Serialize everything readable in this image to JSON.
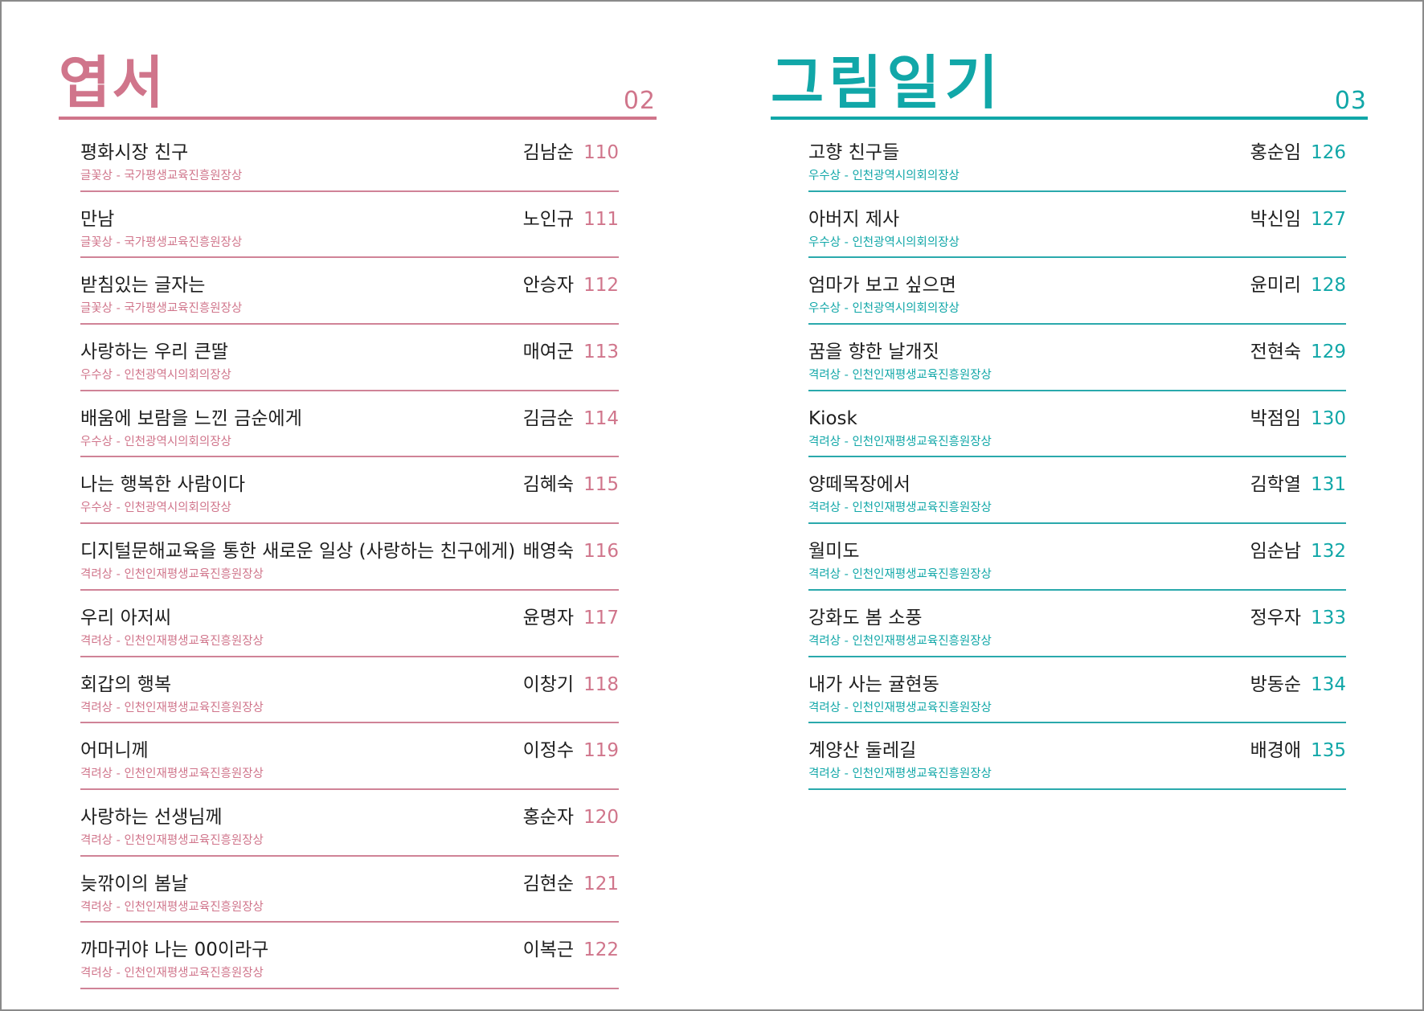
{
  "sections": [
    {
      "title": "엽서",
      "number": "02",
      "accent_color": "#D0758B",
      "items": [
        {
          "title": "평화시장 친구",
          "award": "글꽃상 - 국가평생교육진흥원장상",
          "author": "김남순",
          "page": "110"
        },
        {
          "title": "만남",
          "award": "글꽃상 - 국가평생교육진흥원장상",
          "author": "노인규",
          "page": "111"
        },
        {
          "title": "받침있는 글자는",
          "award": "글꽃상 - 국가평생교육진흥원장상",
          "author": "안승자",
          "page": "112"
        },
        {
          "title": "사랑하는 우리 큰딸",
          "award": "우수상 - 인천광역시의회의장상",
          "author": "매여군",
          "page": "113"
        },
        {
          "title": "배움에 보람을 느낀 금순에게",
          "award": "우수상 - 인천광역시의회의장상",
          "author": "김금순",
          "page": "114"
        },
        {
          "title": "나는 행복한 사람이다",
          "award": "우수상 - 인천광역시의회의장상",
          "author": "김혜숙",
          "page": "115"
        },
        {
          "title": "디지털문해교육을 통한 새로운 일상 (사랑하는 친구에게)",
          "award": "격려상 - 인천인재평생교육진흥원장상",
          "author": "배영숙",
          "page": "116"
        },
        {
          "title": "우리 아저씨",
          "award": "격려상 - 인천인재평생교육진흥원장상",
          "author": "윤명자",
          "page": "117"
        },
        {
          "title": "회갑의 행복",
          "award": "격려상 - 인천인재평생교육진흥원장상",
          "author": "이창기",
          "page": "118"
        },
        {
          "title": "어머니께",
          "award": "격려상 - 인천인재평생교육진흥원장상",
          "author": "이정수",
          "page": "119"
        },
        {
          "title": "사랑하는 선생님께",
          "award": "격려상 - 인천인재평생교육진흥원장상",
          "author": "홍순자",
          "page": "120"
        },
        {
          "title": "늦깎이의 봄날",
          "award": "격려상 - 인천인재평생교육진흥원장상",
          "author": "김현순",
          "page": "121"
        },
        {
          "title": "까마귀야 나는 00이라구",
          "award": "격려상 - 인천인재평생교육진흥원장상",
          "author": "이복근",
          "page": "122"
        }
      ]
    },
    {
      "title": "그림일기",
      "number": "03",
      "accent_color": "#11A7A8",
      "items": [
        {
          "title": "고향 친구들",
          "award": "우수상 - 인천광역시의회의장상",
          "author": "홍순임",
          "page": "126"
        },
        {
          "title": "아버지 제사",
          "award": "우수상 - 인천광역시의회의장상",
          "author": "박신임",
          "page": "127"
        },
        {
          "title": "엄마가 보고 싶으면",
          "award": "우수상 - 인천광역시의회의장상",
          "author": "윤미리",
          "page": "128"
        },
        {
          "title": "꿈을 향한 날개짓",
          "award": "격려상 - 인천인재평생교육진흥원장상",
          "author": "전현숙",
          "page": "129"
        },
        {
          "title": "Kiosk",
          "award": "격려상 - 인천인재평생교육진흥원장상",
          "author": "박점임",
          "page": "130"
        },
        {
          "title": "양떼목장에서",
          "award": "격려상 - 인천인재평생교육진흥원장상",
          "author": "김학열",
          "page": "131"
        },
        {
          "title": "월미도",
          "award": "격려상 - 인천인재평생교육진흥원장상",
          "author": "임순남",
          "page": "132"
        },
        {
          "title": "강화도 봄 소풍",
          "award": "격려상 - 인천인재평생교육진흥원장상",
          "author": "정우자",
          "page": "133"
        },
        {
          "title": "내가 사는 귤현동",
          "award": "격려상 - 인천인재평생교육진흥원장상",
          "author": "방동순",
          "page": "134"
        },
        {
          "title": "계양산 둘레길",
          "award": "격려상 - 인천인재평생교육진흥원장상",
          "author": "배경애",
          "page": "135"
        }
      ]
    }
  ]
}
